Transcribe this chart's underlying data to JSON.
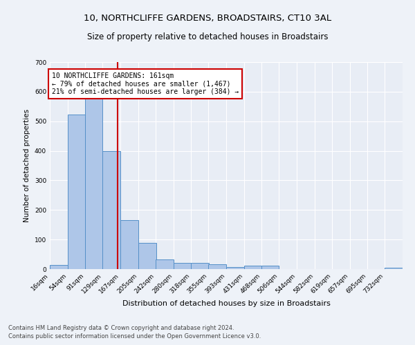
{
  "title": "10, NORTHCLIFFE GARDENS, BROADSTAIRS, CT10 3AL",
  "subtitle": "Size of property relative to detached houses in Broadstairs",
  "xlabel": "Distribution of detached houses by size in Broadstairs",
  "ylabel": "Number of detached properties",
  "footer_line1": "Contains HM Land Registry data © Crown copyright and database right 2024.",
  "footer_line2": "Contains public sector information licensed under the Open Government Licence v3.0.",
  "property_size": 161,
  "property_line_color": "#cc0000",
  "bar_color": "#aec6e8",
  "bar_edge_color": "#5590c8",
  "annotation_text": "10 NORTHCLIFFE GARDENS: 161sqm\n← 79% of detached houses are smaller (1,467)\n21% of semi-detached houses are larger (384) →",
  "annotation_box_color": "white",
  "annotation_box_edge_color": "#cc0000",
  "bin_edges": [
    16,
    54,
    91,
    129,
    167,
    205,
    242,
    280,
    318,
    355,
    393,
    431,
    468,
    506,
    544,
    582,
    619,
    657,
    695,
    732,
    770
  ],
  "bar_heights": [
    13,
    522,
    583,
    400,
    165,
    88,
    33,
    20,
    22,
    17,
    8,
    12,
    12,
    0,
    0,
    0,
    0,
    0,
    0,
    5
  ],
  "ylim": [
    0,
    700
  ],
  "yticks": [
    0,
    100,
    200,
    300,
    400,
    500,
    600,
    700
  ],
  "background_color": "#eef2f8",
  "plot_bg_color": "#e8edf5",
  "grid_color": "white",
  "title_fontsize": 9.5,
  "subtitle_fontsize": 8.5,
  "ylabel_fontsize": 7.5,
  "xlabel_fontsize": 8.0,
  "tick_fontsize": 6.5,
  "footer_fontsize": 6.0,
  "annotation_fontsize": 7.0
}
